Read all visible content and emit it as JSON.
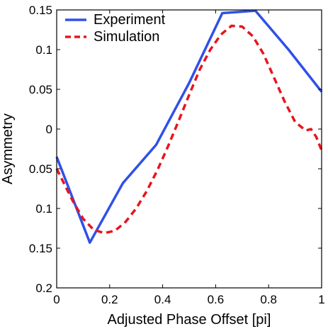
{
  "chart_data": {
    "type": "line",
    "title": "",
    "xlabel": "Adjusted Phase Offset [pi]",
    "ylabel": "Asymmetry",
    "xlim": [
      0,
      1
    ],
    "ylim": [
      -0.2,
      0.15
    ],
    "x_ticks": [
      {
        "value": 0,
        "label": "0"
      },
      {
        "value": 0.2,
        "label": "0.2"
      },
      {
        "value": 0.4,
        "label": "0.4"
      },
      {
        "value": 0.6,
        "label": "0.6"
      },
      {
        "value": 0.8,
        "label": "0.8"
      },
      {
        "value": 1,
        "label": "1"
      }
    ],
    "y_ticks": [
      {
        "value": 0.15,
        "label": "0.15"
      },
      {
        "value": 0.1,
        "label": "0.1"
      },
      {
        "value": 0.05,
        "label": "0.05"
      },
      {
        "value": 0,
        "label": "0"
      },
      {
        "value": -0.05,
        "label": "0.05"
      },
      {
        "value": -0.1,
        "label": "0.1"
      },
      {
        "value": -0.15,
        "label": "0.15"
      },
      {
        "value": -0.2,
        "label": "0.2"
      }
    ],
    "grid": false,
    "legend_position": "top-left",
    "series": [
      {
        "name": "Experiment",
        "color": "#3050e8",
        "style": "solid",
        "x": [
          0,
          0.125,
          0.25,
          0.375,
          0.5,
          0.625,
          0.75,
          0.875,
          1
        ],
        "y": [
          -0.035,
          -0.143,
          -0.068,
          -0.02,
          0.058,
          0.146,
          0.149,
          0.1,
          0.047
        ]
      },
      {
        "name": "Simulation",
        "color": "#e8141e",
        "style": "dashed",
        "x": [
          0,
          0.06,
          0.1,
          0.14,
          0.18,
          0.22,
          0.26,
          0.3,
          0.34,
          0.38,
          0.42,
          0.46,
          0.5,
          0.54,
          0.58,
          0.62,
          0.66,
          0.7,
          0.74,
          0.78,
          0.82,
          0.86,
          0.9,
          0.94,
          0.96,
          0.98,
          1
        ],
        "y": [
          -0.05,
          -0.09,
          -0.113,
          -0.127,
          -0.131,
          -0.128,
          -0.117,
          -0.1,
          -0.078,
          -0.052,
          -0.022,
          0.01,
          0.043,
          0.075,
          0.1,
          0.119,
          0.13,
          0.129,
          0.117,
          0.095,
          0.065,
          0.035,
          0.009,
          -0.002,
          0,
          -0.01,
          -0.027
        ]
      }
    ]
  }
}
